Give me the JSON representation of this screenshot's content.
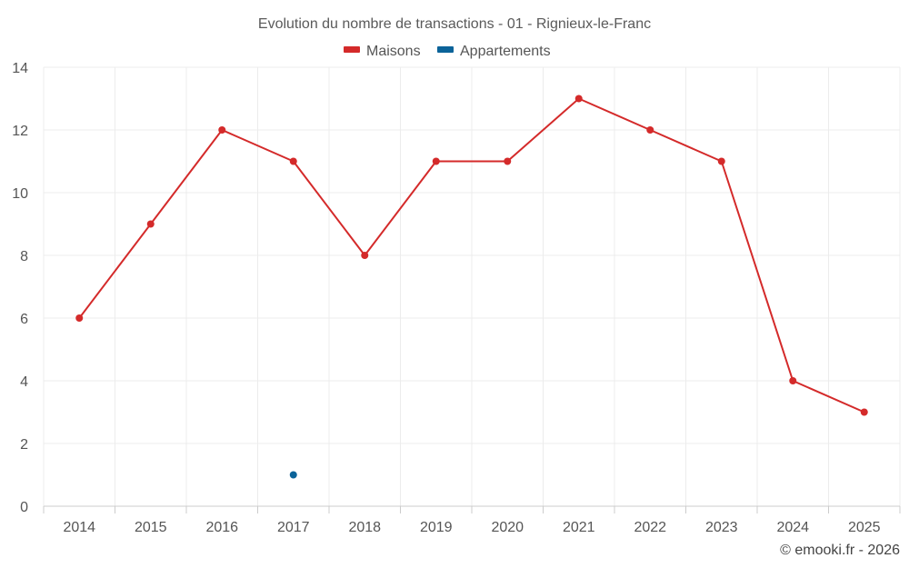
{
  "chart_data": {
    "type": "line",
    "title": "Evolution du nombre de transactions - 01 - Rignieux-le-Franc",
    "categories": [
      "2014",
      "2015",
      "2016",
      "2017",
      "2018",
      "2019",
      "2020",
      "2021",
      "2022",
      "2023",
      "2024",
      "2025"
    ],
    "series": [
      {
        "name": "Maisons",
        "color": "#d42a2a",
        "values": [
          6,
          9,
          12,
          11,
          8,
          11,
          11,
          13,
          12,
          11,
          4,
          3
        ]
      },
      {
        "name": "Appartements",
        "color": "#0b6399",
        "values": [
          null,
          null,
          null,
          1,
          null,
          null,
          null,
          null,
          null,
          null,
          null,
          null
        ]
      }
    ],
    "ylim": [
      0,
      14
    ],
    "yticks": [
      0,
      2,
      4,
      6,
      8,
      10,
      12,
      14
    ],
    "grid": true,
    "legend_position": "top-center",
    "xlabel": "",
    "ylabel": ""
  },
  "credit": "© emooki.fr - 2026"
}
